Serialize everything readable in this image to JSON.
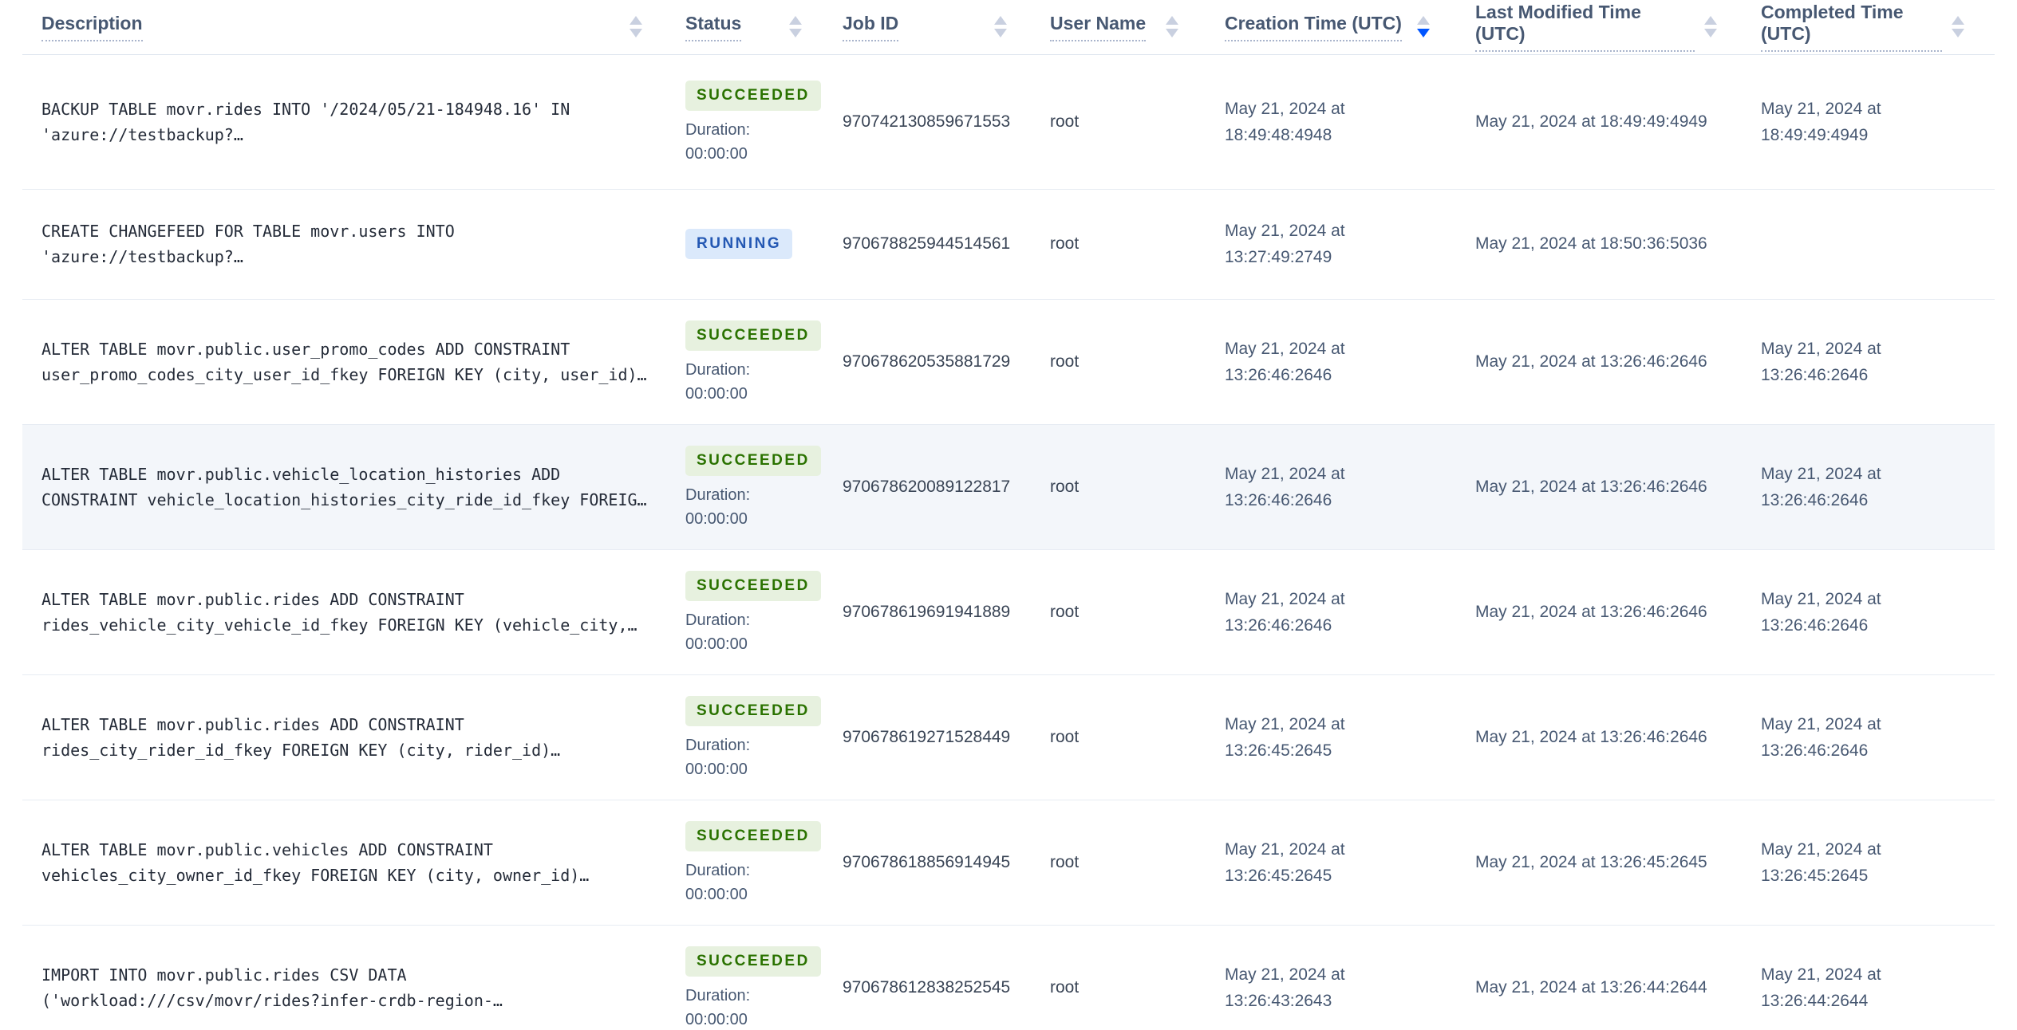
{
  "table": {
    "columns": [
      {
        "label": "Description",
        "sort": "none"
      },
      {
        "label": "Status",
        "sort": "none"
      },
      {
        "label": "Job ID",
        "sort": "none"
      },
      {
        "label": "User Name",
        "sort": "none"
      },
      {
        "label": "Creation Time (UTC)",
        "sort": "desc"
      },
      {
        "label": "Last Modified Time (UTC)",
        "sort": "none"
      },
      {
        "label": "Completed Time (UTC)",
        "sort": "none"
      }
    ],
    "rows": [
      {
        "description": "BACKUP TABLE movr.rides INTO '/2024/05/21-184948.16' IN 'azure://testbackup?…",
        "status": "SUCCEEDED",
        "duration_label": "Duration:",
        "duration": "00:00:00",
        "job_id": "970742130859671553",
        "user": "root",
        "created": "May 21, 2024 at 18:49:48:4948",
        "modified": "May 21, 2024 at 18:49:49:4949",
        "completed": "May 21, 2024 at 18:49:49:4949",
        "highlighted": false
      },
      {
        "description": "CREATE CHANGEFEED FOR TABLE movr.users INTO 'azure://testbackup?…",
        "status": "RUNNING",
        "duration_label": "",
        "duration": "",
        "job_id": "970678825944514561",
        "user": "root",
        "created": "May 21, 2024 at 13:27:49:2749",
        "modified": "May 21, 2024 at 18:50:36:5036",
        "completed": "",
        "highlighted": false
      },
      {
        "description": "ALTER TABLE movr.public.user_promo_codes ADD CONSTRAINT user_promo_codes_city_user_id_fkey FOREIGN KEY (city, user_id)…",
        "status": "SUCCEEDED",
        "duration_label": "Duration:",
        "duration": "00:00:00",
        "job_id": "970678620535881729",
        "user": "root",
        "created": "May 21, 2024 at 13:26:46:2646",
        "modified": "May 21, 2024 at 13:26:46:2646",
        "completed": "May 21, 2024 at 13:26:46:2646",
        "highlighted": false
      },
      {
        "description": "ALTER TABLE movr.public.vehicle_location_histories ADD CONSTRAINT vehicle_location_histories_city_ride_id_fkey FOREIG…",
        "status": "SUCCEEDED",
        "duration_label": "Duration:",
        "duration": "00:00:00",
        "job_id": "970678620089122817",
        "user": "root",
        "created": "May 21, 2024 at 13:26:46:2646",
        "modified": "May 21, 2024 at 13:26:46:2646",
        "completed": "May 21, 2024 at 13:26:46:2646",
        "highlighted": true
      },
      {
        "description": "ALTER TABLE movr.public.rides ADD CONSTRAINT rides_vehicle_city_vehicle_id_fkey FOREIGN KEY (vehicle_city,…",
        "status": "SUCCEEDED",
        "duration_label": "Duration:",
        "duration": "00:00:00",
        "job_id": "970678619691941889",
        "user": "root",
        "created": "May 21, 2024 at 13:26:46:2646",
        "modified": "May 21, 2024 at 13:26:46:2646",
        "completed": "May 21, 2024 at 13:26:46:2646",
        "highlighted": false
      },
      {
        "description": "ALTER TABLE movr.public.rides ADD CONSTRAINT rides_city_rider_id_fkey FOREIGN KEY (city, rider_id)…",
        "status": "SUCCEEDED",
        "duration_label": "Duration:",
        "duration": "00:00:00",
        "job_id": "970678619271528449",
        "user": "root",
        "created": "May 21, 2024 at 13:26:45:2645",
        "modified": "May 21, 2024 at 13:26:46:2646",
        "completed": "May 21, 2024 at 13:26:46:2646",
        "highlighted": false
      },
      {
        "description": "ALTER TABLE movr.public.vehicles ADD CONSTRAINT vehicles_city_owner_id_fkey FOREIGN KEY (city, owner_id)…",
        "status": "SUCCEEDED",
        "duration_label": "Duration:",
        "duration": "00:00:00",
        "job_id": "970678618856914945",
        "user": "root",
        "created": "May 21, 2024 at 13:26:45:2645",
        "modified": "May 21, 2024 at 13:26:45:2645",
        "completed": "May 21, 2024 at 13:26:45:2645",
        "highlighted": false
      },
      {
        "description": "IMPORT INTO movr.public.rides CSV DATA ('workload:///csv/movr/rides?infer-crdb-region-…",
        "status": "SUCCEEDED",
        "duration_label": "Duration:",
        "duration": "00:00:00",
        "job_id": "970678612838252545",
        "user": "root",
        "created": "May 21, 2024 at 13:26:43:2643",
        "modified": "May 21, 2024 at 13:26:44:2644",
        "completed": "May 21, 2024 at 13:26:44:2644",
        "highlighted": false
      }
    ]
  },
  "colors": {
    "sort_active": "#0055ff",
    "succeeded_text": "#2a7200",
    "succeeded_bg": "#e7f1df",
    "running_text": "#2458b3",
    "running_bg": "#dbe9fb",
    "header_text": "#475872",
    "row_divider": "#e7ecf3",
    "row_highlight_bg": "#f3f6fa"
  }
}
